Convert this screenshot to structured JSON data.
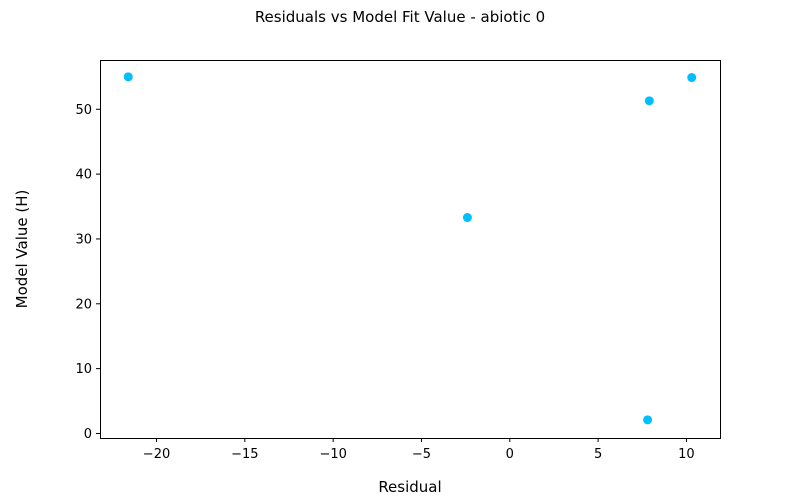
{
  "chart_data": {
    "type": "scatter",
    "title": "Residuals vs Model Fit Value  - abiotic 0",
    "xlabel": "Residual",
    "ylabel": "Model Value (H)",
    "xlim": [
      -23.2,
      11.9
    ],
    "ylim": [
      -0.7,
      57.6
    ],
    "xticks": [
      -20,
      -15,
      -10,
      -5,
      0,
      5,
      10
    ],
    "xtick_labels": [
      "−20",
      "−15",
      "−10",
      "−5",
      "0",
      "5",
      "10"
    ],
    "yticks": [
      0,
      10,
      20,
      30,
      40,
      50
    ],
    "ytick_labels": [
      "0",
      "10",
      "20",
      "30",
      "40",
      "50"
    ],
    "grid": false,
    "legend": "none",
    "series": [
      {
        "color": "#00bfff",
        "points": [
          {
            "x": -21.6,
            "y": 55.0
          },
          {
            "x": -2.4,
            "y": 33.3
          },
          {
            "x": 7.9,
            "y": 51.3
          },
          {
            "x": 10.3,
            "y": 54.9
          },
          {
            "x": 7.8,
            "y": 2.1
          }
        ]
      }
    ]
  }
}
